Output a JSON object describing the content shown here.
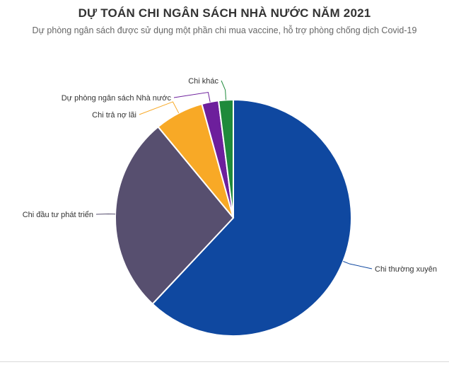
{
  "chart_data": {
    "type": "pie",
    "title": "DỰ TOÁN CHI NGÂN SÁCH NHÀ NƯỚC NĂM 2021",
    "subtitle": "Dự phòng ngân sách được sử dụng một phần chi mua vaccine, hỗ trợ phòng chống dịch Covid-19",
    "start_angle_deg": 0,
    "direction": "clockwise",
    "slices": [
      {
        "label": "Chi thường xuyên",
        "value": 62.0,
        "color": "#0f48a0"
      },
      {
        "label": "Chi đầu tư phát triển",
        "value": 27.0,
        "color": "#574f6f"
      },
      {
        "label": "Chi trả nợ lãi",
        "value": 6.7,
        "color": "#f8a926"
      },
      {
        "label": "Dự phòng ngân sách Nhà nước",
        "value": 2.3,
        "color": "#6d1f9c"
      },
      {
        "label": "Chi khác",
        "value": 2.0,
        "color": "#1f8a3b"
      }
    ]
  }
}
